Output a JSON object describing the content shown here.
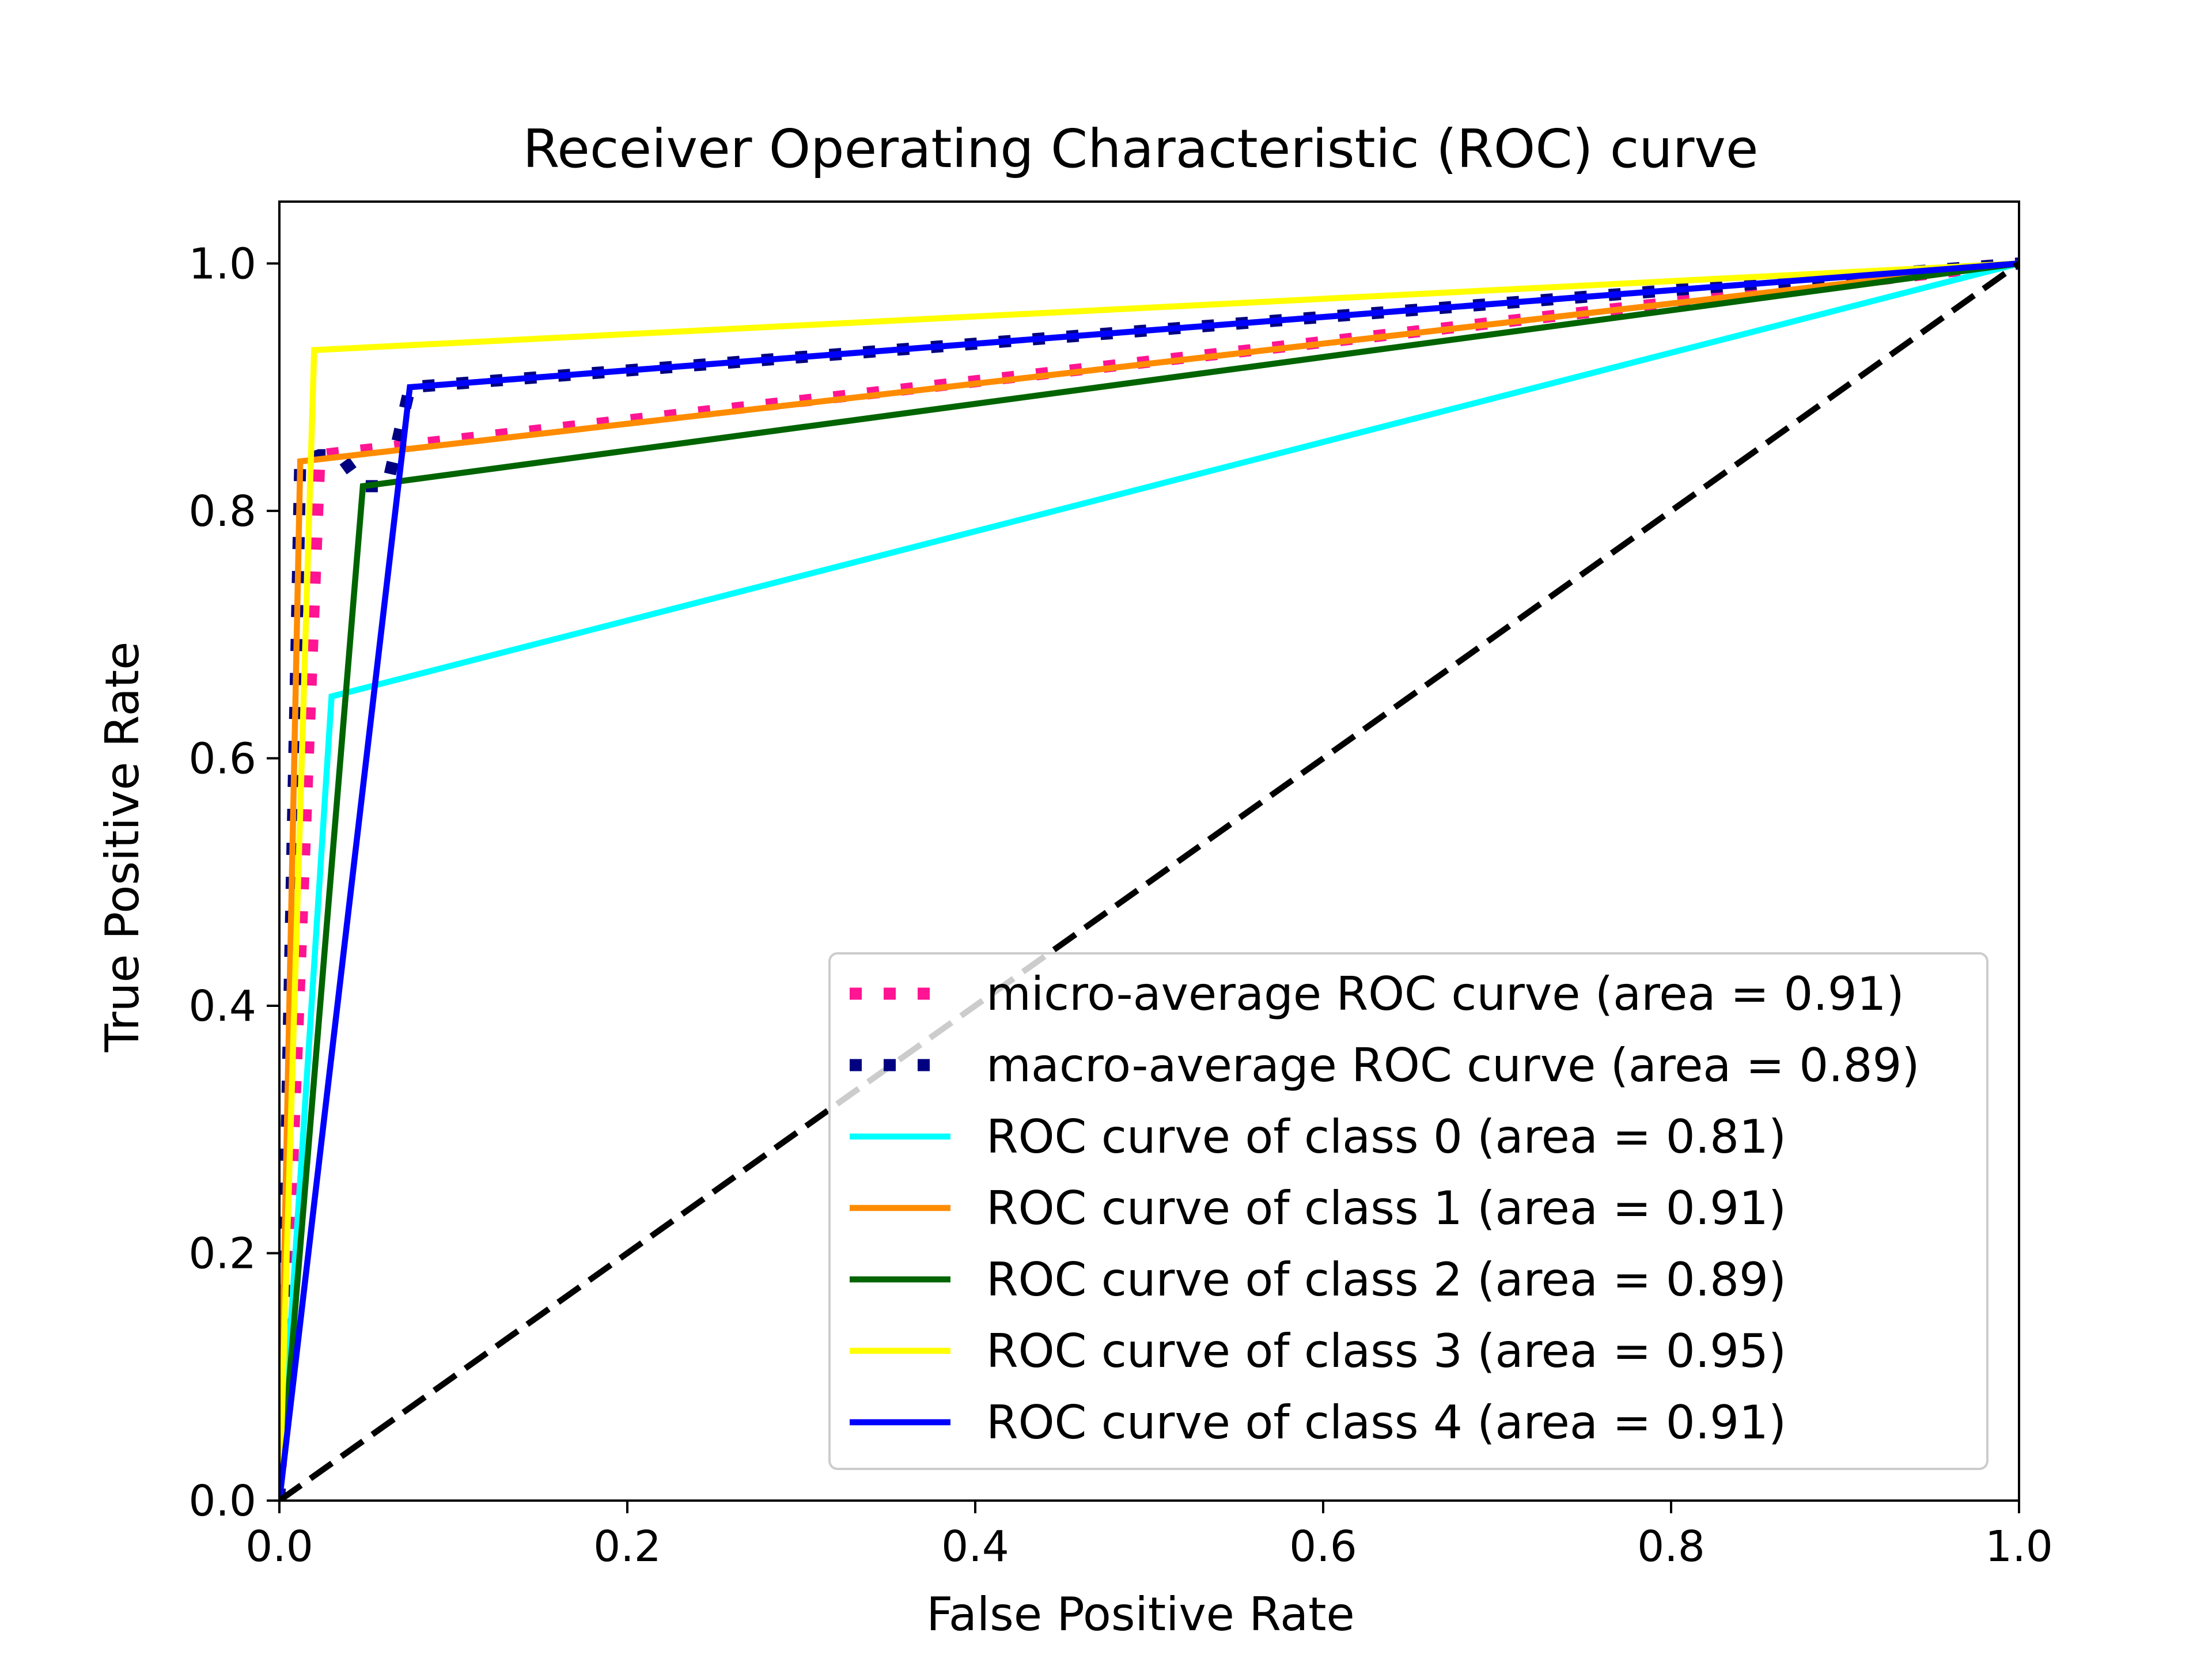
{
  "chart_data": {
    "type": "line",
    "title": "Receiver Operating Characteristic (ROC) curve",
    "xlabel": "False Positive Rate",
    "ylabel": "True Positive Rate",
    "xlim": [
      0.0,
      1.0
    ],
    "ylim": [
      0.0,
      1.05
    ],
    "xticks": [
      0.0,
      0.2,
      0.4,
      0.6,
      0.8,
      1.0
    ],
    "yticks": [
      0.0,
      0.2,
      0.4,
      0.6,
      0.8,
      1.0
    ],
    "xtick_labels": [
      "0.0",
      "0.2",
      "0.4",
      "0.6",
      "0.8",
      "1.0"
    ],
    "ytick_labels": [
      "0.0",
      "0.2",
      "0.4",
      "0.6",
      "0.8",
      "1.0"
    ],
    "grid": false,
    "legend_position": "lower-right",
    "series": [
      {
        "name": "micro-average ROC curve (area = 0.91)",
        "color": "#ff1493",
        "line_style": "dotted",
        "x": [
          0.0,
          0.023,
          1.0
        ],
        "y": [
          0.0,
          0.845,
          1.0
        ]
      },
      {
        "name": "macro-average ROC curve (area = 0.89)",
        "color": "#000080",
        "line_style": "dotted",
        "x": [
          0.0,
          0.012,
          0.023,
          0.035,
          0.048,
          0.062,
          0.075,
          1.0
        ],
        "y": [
          0.0,
          0.84,
          0.845,
          0.845,
          0.82,
          0.82,
          0.9,
          1.0
        ]
      },
      {
        "name": "ROC curve of class 0 (area = 0.81)",
        "color": "#00ffff",
        "line_style": "solid",
        "x": [
          0.0,
          0.03,
          1.0
        ],
        "y": [
          0.0,
          0.65,
          1.0
        ]
      },
      {
        "name": "ROC curve of class 1 (area = 0.91)",
        "color": "#ff8c00",
        "line_style": "solid",
        "x": [
          0.0,
          0.012,
          1.0
        ],
        "y": [
          0.0,
          0.84,
          1.0
        ]
      },
      {
        "name": "ROC curve of class 2 (area = 0.89)",
        "color": "#006400",
        "line_style": "solid",
        "x": [
          0.0,
          0.048,
          1.0
        ],
        "y": [
          0.0,
          0.82,
          1.0
        ]
      },
      {
        "name": "ROC curve of class 3 (area = 0.95)",
        "color": "#ffff00",
        "line_style": "solid",
        "x": [
          0.0,
          0.02,
          1.0
        ],
        "y": [
          0.0,
          0.93,
          1.0
        ]
      },
      {
        "name": "ROC curve of class 4 (area = 0.91)",
        "color": "#0000ff",
        "line_style": "solid",
        "x": [
          0.0,
          0.075,
          1.0
        ],
        "y": [
          0.0,
          0.9,
          1.0
        ]
      }
    ],
    "reference_line": {
      "color": "#000000",
      "line_style": "dashed",
      "x": [
        0.0,
        1.0
      ],
      "y": [
        0.0,
        1.0
      ]
    }
  }
}
